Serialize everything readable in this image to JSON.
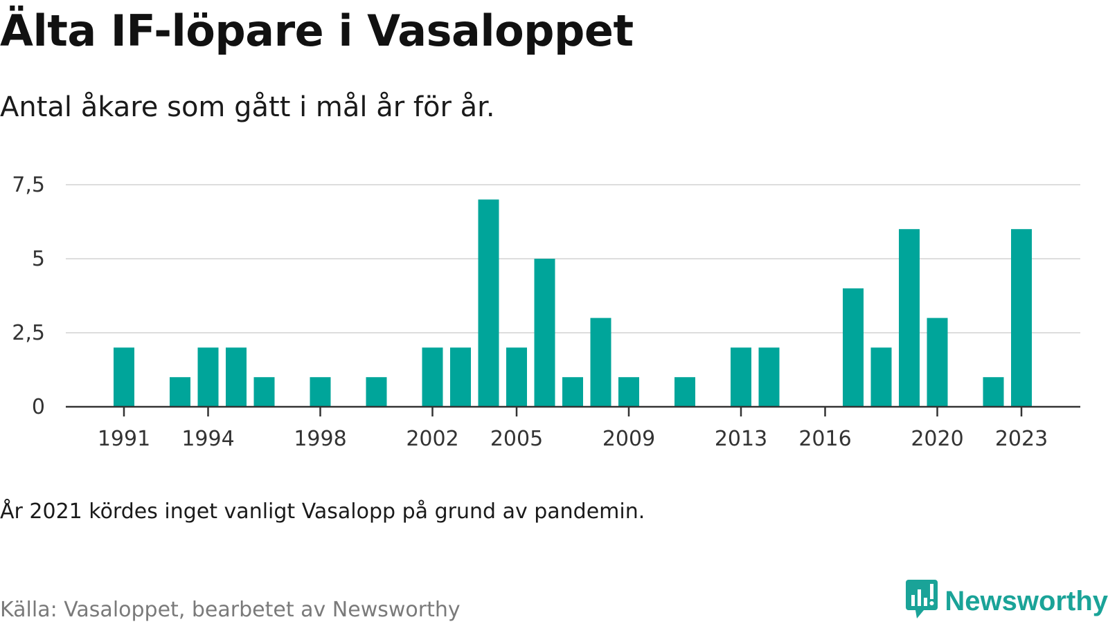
{
  "title": "Älta IF-löpare i Vasaloppet",
  "subtitle": "Antal åkare som gått i mål år för år.",
  "footnote": "År 2021 kördes inget vanligt Vasalopp på grund av pandemin.",
  "source": "Källa: Vasaloppet, bearbetet av Newsworthy",
  "brand": {
    "name": "Newsworthy",
    "icon": "newsworthy-logo-icon"
  },
  "colors": {
    "bar": "#00a59a",
    "grid": "#dddddd",
    "axis": "#333333",
    "brand": "#1aa398"
  },
  "chart_data": {
    "type": "bar",
    "categories": [
      1990,
      1991,
      1992,
      1993,
      1994,
      1995,
      1996,
      1997,
      1998,
      1999,
      2000,
      2001,
      2002,
      2003,
      2004,
      2005,
      2006,
      2007,
      2008,
      2009,
      2010,
      2011,
      2012,
      2013,
      2014,
      2015,
      2016,
      2017,
      2018,
      2019,
      2020,
      2021,
      2022,
      2023
    ],
    "values": [
      0,
      2,
      0,
      1,
      2,
      2,
      1,
      0,
      1,
      0,
      1,
      0,
      2,
      2,
      7,
      2,
      5,
      1,
      3,
      1,
      0,
      1,
      0,
      2,
      2,
      0,
      0,
      4,
      2,
      6,
      3,
      0,
      1,
      6
    ],
    "x_tick_labels": [
      "1991",
      "1994",
      "1998",
      "2002",
      "2005",
      "2009",
      "2013",
      "2016",
      "2020",
      "2023"
    ],
    "y_ticks": [
      0,
      2.5,
      5,
      7.5
    ],
    "y_tick_labels": [
      "0",
      "2,5",
      "5",
      "7,5"
    ],
    "ylim": [
      0,
      7.5
    ],
    "grid": true,
    "xlabel": "",
    "ylabel": ""
  }
}
